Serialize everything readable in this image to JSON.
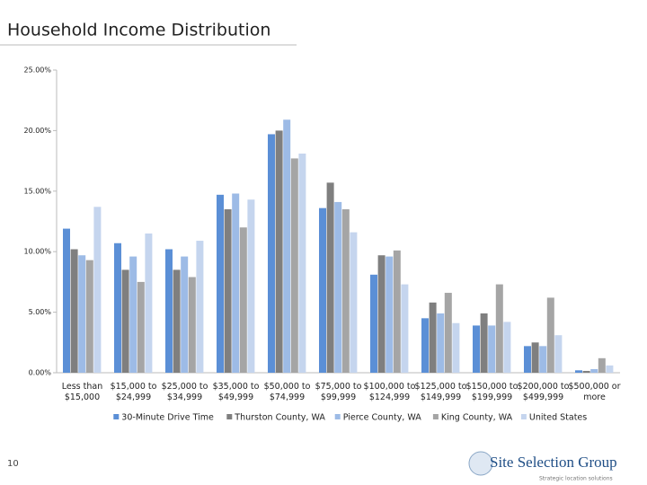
{
  "slide": {
    "title": "Household Income Distribution",
    "page_number": "10",
    "logo": "Site Selection Group",
    "tagline": "Strategic location solutions"
  },
  "chart_data": {
    "type": "bar",
    "categories": [
      "Less than $15,000",
      "$15,000 to $24,999",
      "$25,000 to $34,999",
      "$35,000 to $49,999",
      "$50,000 to $74,999",
      "$75,000 to $99,999",
      "$100,000 to $124,999",
      "$125,000 to $149,999",
      "$150,000 to $199,999",
      "$200,000 to $499,999",
      "$500,000 or more"
    ],
    "series": [
      {
        "name": "30-Minute Drive Time",
        "color": "#5b8fd6",
        "values": [
          11.9,
          10.7,
          10.2,
          14.7,
          19.7,
          13.6,
          8.1,
          4.5,
          3.9,
          2.2,
          0.2
        ]
      },
      {
        "name": "Thurston County, WA",
        "color": "#7f7f7f",
        "values": [
          10.2,
          8.5,
          8.5,
          13.5,
          20.0,
          15.7,
          9.7,
          5.8,
          4.9,
          2.5,
          0.15
        ]
      },
      {
        "name": "Pierce County, WA",
        "color": "#9dbbe6",
        "values": [
          9.7,
          9.6,
          9.6,
          14.8,
          20.9,
          14.1,
          9.6,
          4.9,
          3.9,
          2.2,
          0.3
        ]
      },
      {
        "name": "King County, WA",
        "color": "#a5a5a5",
        "values": [
          9.3,
          7.5,
          7.9,
          12.0,
          17.7,
          13.5,
          10.1,
          6.6,
          7.3,
          6.2,
          1.2
        ]
      },
      {
        "name": "United States",
        "color": "#c5d5ee",
        "values": [
          13.7,
          11.5,
          10.9,
          14.3,
          18.1,
          11.6,
          7.3,
          4.1,
          4.2,
          3.1,
          0.6
        ]
      }
    ],
    "ylim": [
      0,
      25
    ],
    "yticks": [
      {
        "value": 0,
        "label": "0.00%"
      },
      {
        "value": 5,
        "label": "5.00%"
      },
      {
        "value": 10,
        "label": "10.00%"
      },
      {
        "value": 15,
        "label": "15.00%"
      },
      {
        "value": 20,
        "label": "20.00%"
      },
      {
        "value": 25,
        "label": "25.00%"
      }
    ],
    "grid": false,
    "legend": "bottom"
  }
}
